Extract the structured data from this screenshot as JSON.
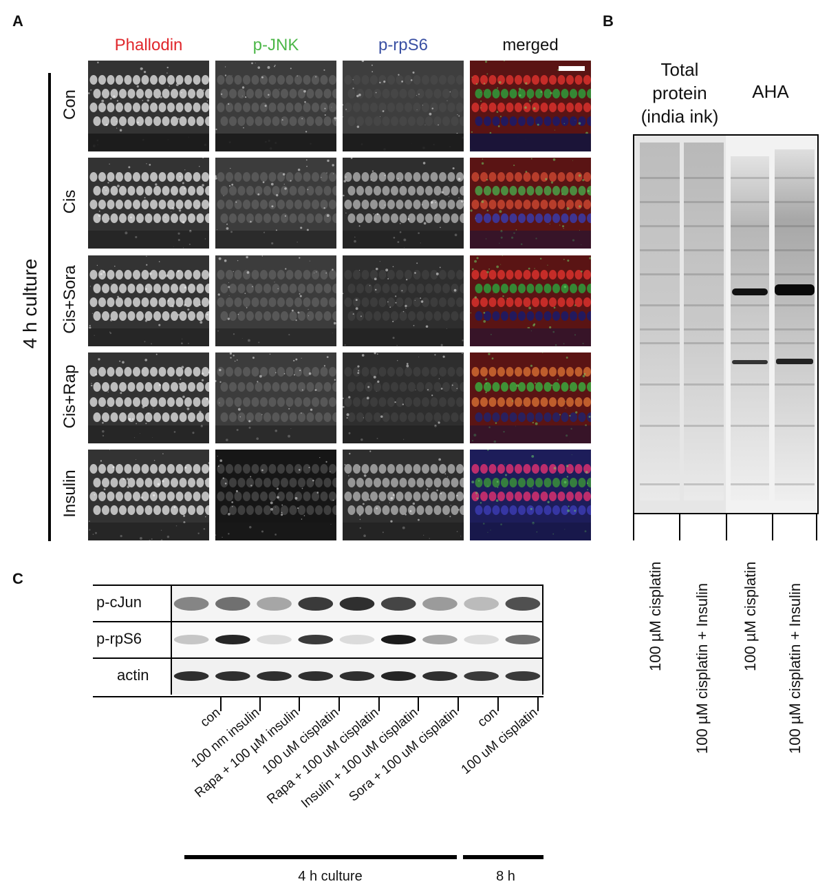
{
  "panel_a": {
    "letter": "A",
    "columns": [
      {
        "label": "Phallodin",
        "color": "#e0262b"
      },
      {
        "label": "p-JNK",
        "color": "#4cb748"
      },
      {
        "label": "p-rpS6",
        "color": "#3a50a3"
      },
      {
        "label": "merged",
        "color": "#111111"
      }
    ],
    "rows": [
      "Con",
      "Cis",
      "Cis+Sora",
      "Cis+Rap",
      "Insulin"
    ],
    "group_label": "4 h culture"
  },
  "panel_b": {
    "letter": "B",
    "header_left": [
      "Total",
      "protein",
      "(india ink)"
    ],
    "header_right": "AHA",
    "lanes": [
      "100 µM cisplatin",
      "100 µM cisplatin + Insulin",
      "100 µM cisplatin",
      "100 µM cisplatin + Insulin"
    ]
  },
  "panel_c": {
    "letter": "C",
    "blots": [
      "p-cJun",
      "p-rpS6",
      "actin"
    ],
    "lanes": [
      "con",
      "100 nm insulin",
      "Rapa + 100 µM insulin",
      "100 uM cisplatin",
      "Rapa + 100 uM cisplatin",
      "Insulin + 100 uM cisplatin",
      "Sora + 100 uM cisplatin",
      "con",
      "100 uM cisplatin"
    ],
    "group_labels": [
      "4 h culture",
      "8 h"
    ],
    "band_intensity": {
      "p-cJun": [
        0.45,
        0.55,
        0.3,
        0.8,
        0.85,
        0.75,
        0.35,
        0.2,
        0.7
      ],
      "p-rpS6": [
        0.15,
        0.9,
        0.05,
        0.8,
        0.05,
        0.95,
        0.3,
        0.05,
        0.55
      ],
      "actin": [
        0.85,
        0.85,
        0.85,
        0.85,
        0.85,
        0.9,
        0.85,
        0.8,
        0.8
      ]
    }
  }
}
